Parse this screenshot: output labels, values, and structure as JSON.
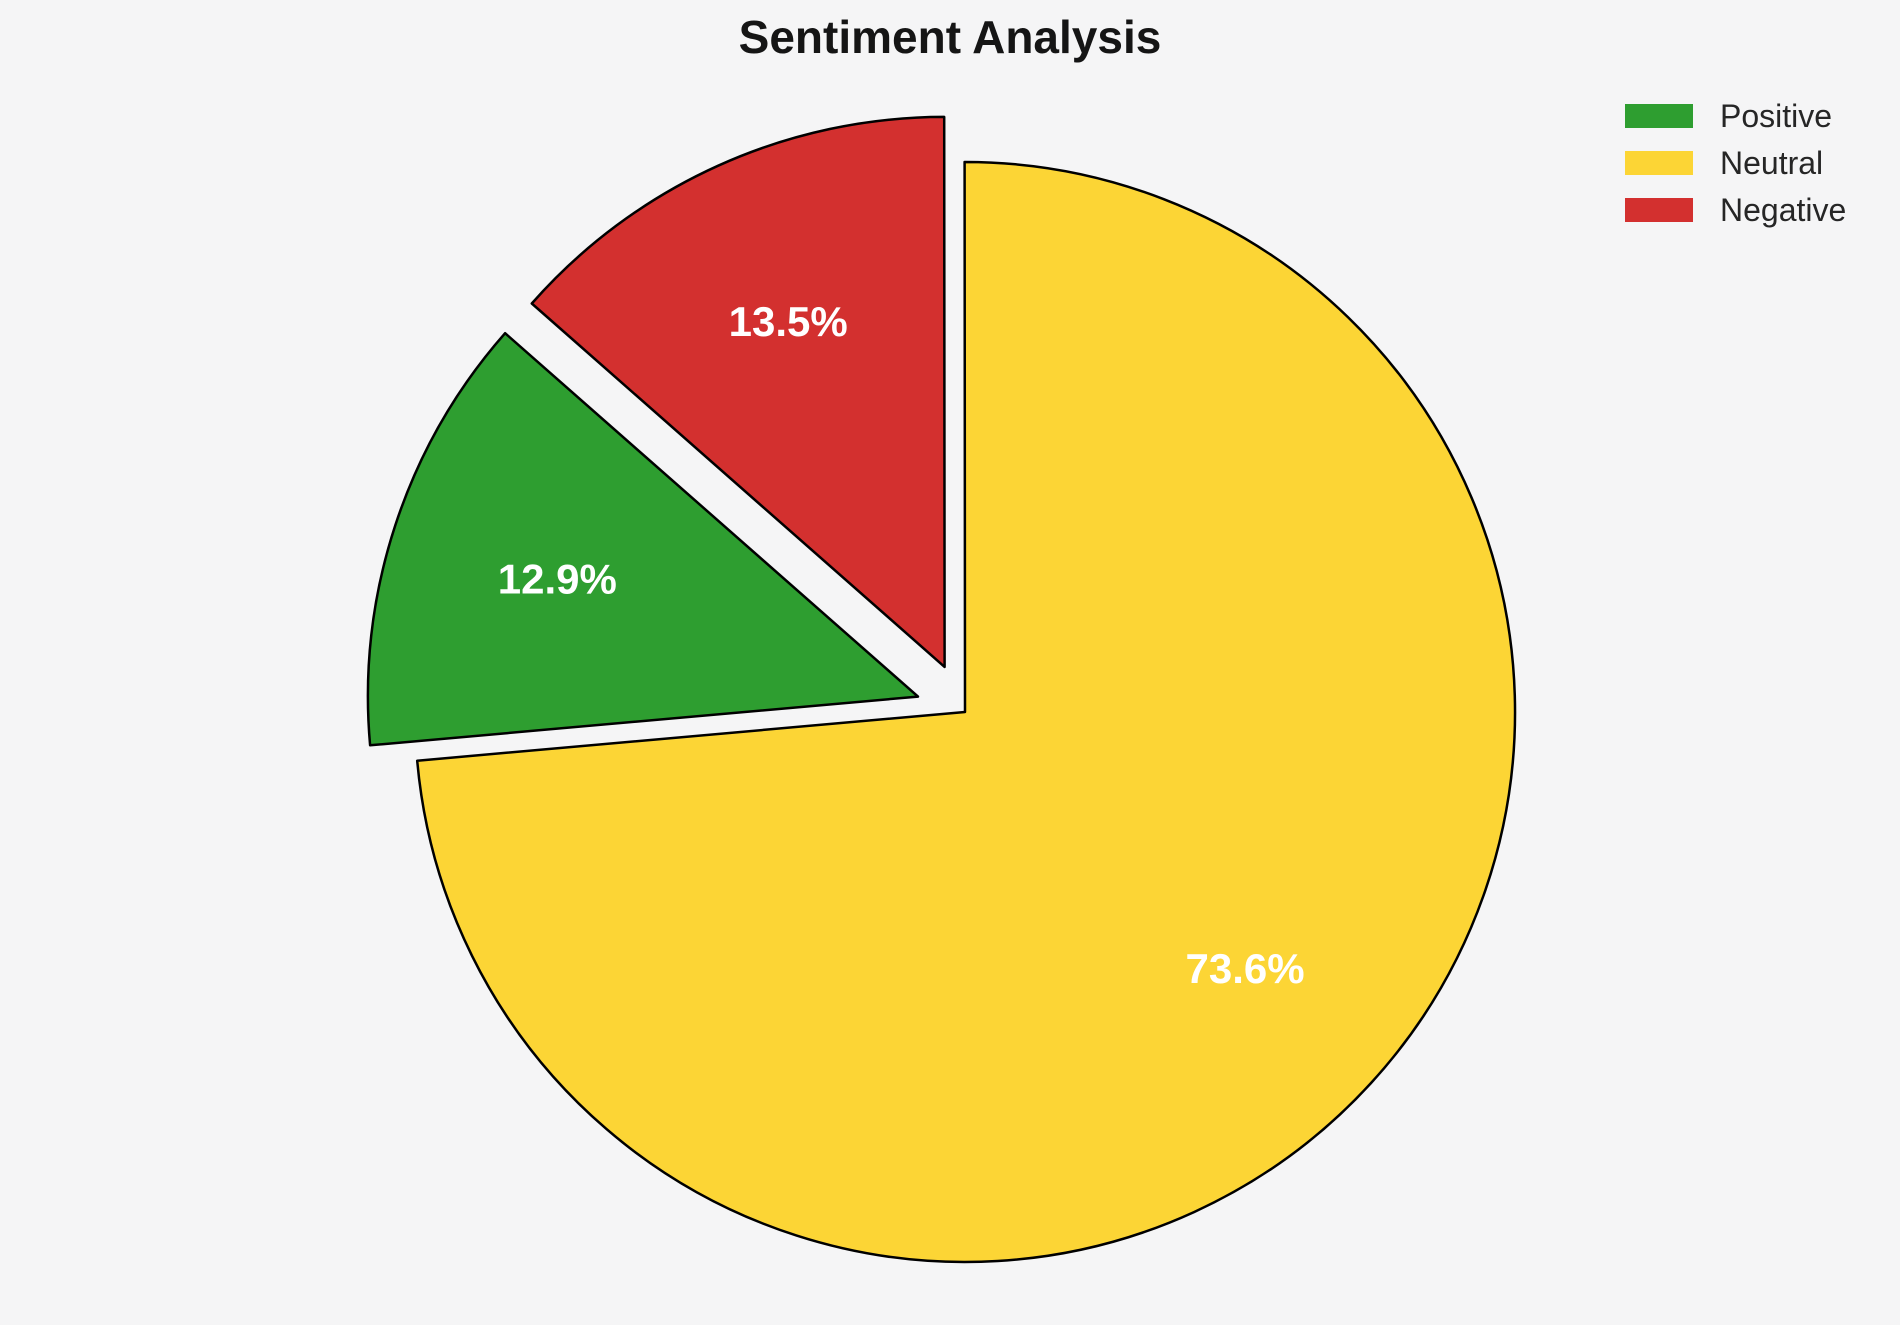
{
  "title": "Sentiment Analysis",
  "chart_data": {
    "type": "pie",
    "labels": [
      "Positive",
      "Neutral",
      "Negative"
    ],
    "values": [
      12.9,
      73.6,
      13.5
    ],
    "pct_labels": [
      "12.9%",
      "73.6%",
      "13.5%"
    ],
    "colors": [
      "#2E9E30",
      "#FCD535",
      "#D3302F"
    ],
    "start_angle": 138.64,
    "counterclock": true,
    "explode": [
      0.09,
      0,
      0.09
    ],
    "pct_distance": 0.69,
    "edge_color": "#000000",
    "label_color": "#FFFFFF",
    "legend_position": "upper right",
    "background": "#F5F5F6"
  },
  "legend": {
    "items": [
      {
        "label": "Positive"
      },
      {
        "label": "Neutral"
      },
      {
        "label": "Negative"
      }
    ]
  }
}
